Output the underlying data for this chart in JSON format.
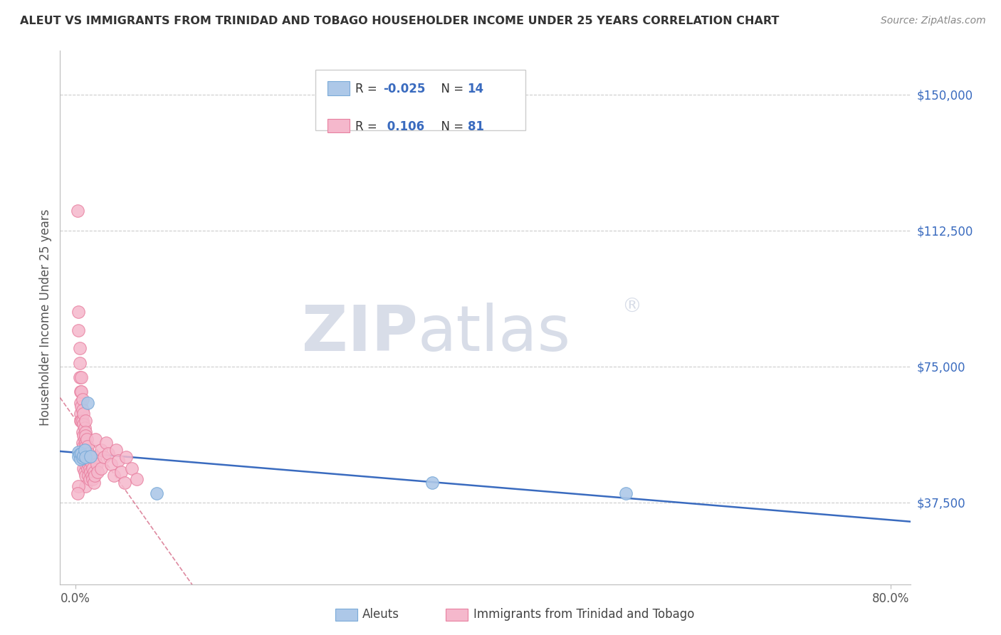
{
  "title": "ALEUT VS IMMIGRANTS FROM TRINIDAD AND TOBAGO HOUSEHOLDER INCOME UNDER 25 YEARS CORRELATION CHART",
  "source": "Source: ZipAtlas.com",
  "ylabel": "Householder Income Under 25 years",
  "ytick_labels": [
    "$37,500",
    "$75,000",
    "$112,500",
    "$150,000"
  ],
  "ytick_values": [
    37500,
    75000,
    112500,
    150000
  ],
  "ymin": 15000,
  "ymax": 162000,
  "xmin": -0.015,
  "xmax": 0.82,
  "legend_r_aleut": "-0.025",
  "legend_n_aleut": "14",
  "legend_r_tt": "0.106",
  "legend_n_tt": "81",
  "color_aleut": "#adc8e8",
  "color_aleut_edge": "#7aaad8",
  "color_aleut_line": "#3a6bbf",
  "color_tt": "#f5b8cc",
  "color_tt_edge": "#e880a0",
  "color_tt_line": "#d05878",
  "watermark_color": "#d8dde8",
  "grid_color": "#cccccc",
  "title_color": "#333333",
  "source_color": "#888888",
  "axis_label_color": "#555555",
  "tick_color": "#3a6bbf",
  "aleut_x": [
    0.003,
    0.003,
    0.004,
    0.005,
    0.006,
    0.007,
    0.008,
    0.009,
    0.01,
    0.012,
    0.015,
    0.08,
    0.35,
    0.54
  ],
  "aleut_y": [
    51500,
    50200,
    50800,
    49500,
    51000,
    49800,
    50500,
    52000,
    50000,
    65000,
    50200,
    40000,
    43000,
    40000
  ],
  "tt_x": [
    0.002,
    0.003,
    0.003,
    0.004,
    0.004,
    0.004,
    0.005,
    0.005,
    0.005,
    0.005,
    0.006,
    0.006,
    0.006,
    0.006,
    0.007,
    0.007,
    0.007,
    0.007,
    0.007,
    0.007,
    0.008,
    0.008,
    0.008,
    0.008,
    0.008,
    0.008,
    0.009,
    0.009,
    0.009,
    0.009,
    0.009,
    0.01,
    0.01,
    0.01,
    0.01,
    0.01,
    0.01,
    0.01,
    0.01,
    0.01,
    0.011,
    0.011,
    0.011,
    0.012,
    0.012,
    0.012,
    0.013,
    0.013,
    0.013,
    0.014,
    0.014,
    0.014,
    0.015,
    0.015,
    0.016,
    0.016,
    0.017,
    0.017,
    0.018,
    0.018,
    0.019,
    0.02,
    0.02,
    0.021,
    0.022,
    0.025,
    0.025,
    0.028,
    0.03,
    0.032,
    0.035,
    0.038,
    0.04,
    0.042,
    0.045,
    0.048,
    0.05,
    0.055,
    0.06,
    0.003,
    0.002
  ],
  "tt_y": [
    118000,
    90000,
    85000,
    80000,
    76000,
    72000,
    68000,
    65000,
    62000,
    60000,
    72000,
    68000,
    64000,
    60000,
    66000,
    63000,
    60000,
    57000,
    54000,
    51000,
    62000,
    59000,
    56000,
    53000,
    50000,
    47000,
    58000,
    55000,
    52000,
    49000,
    46000,
    60000,
    57000,
    54000,
    51000,
    48000,
    45000,
    42000,
    56000,
    53000,
    55000,
    52000,
    49000,
    53000,
    50000,
    47000,
    51000,
    48000,
    45000,
    50000,
    47000,
    44000,
    49000,
    46000,
    48000,
    45000,
    47000,
    44000,
    46000,
    43000,
    45000,
    55000,
    50000,
    48000,
    46000,
    52000,
    47000,
    50000,
    54000,
    51000,
    48000,
    45000,
    52000,
    49000,
    46000,
    43000,
    50000,
    47000,
    44000,
    42000,
    40000
  ]
}
